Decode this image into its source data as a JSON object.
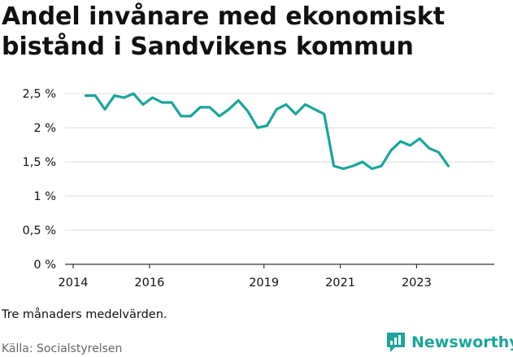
{
  "title_line1": "Andel invånare med ekonomiskt",
  "title_line2": "bistånd i Sandvikens kommun",
  "note": "Tre månaders medelvärden.",
  "source": "Källa: Socialstyrelsen",
  "brand": "Newsworthy",
  "colors": {
    "line": "#1aa59a",
    "grid": "#dddddd",
    "axis": "#333333",
    "brand": "#1aa59a"
  },
  "chart_data": {
    "type": "line",
    "title": "Andel invånare med ekonomiskt bistånd i Sandvikens kommun",
    "y_ticks": [
      {
        "value": 0,
        "label": "0 %"
      },
      {
        "value": 0.5,
        "label": "0,5 %"
      },
      {
        "value": 1,
        "label": "1 %"
      },
      {
        "value": 1.5,
        "label": "1,5 %"
      },
      {
        "value": 2,
        "label": "2 %"
      },
      {
        "value": 2.5,
        "label": "2,5 %"
      }
    ],
    "x_ticks": [
      {
        "value": 2014.0,
        "label": "2014"
      },
      {
        "value": 2016.0,
        "label": "2016"
      },
      {
        "value": 2019.0,
        "label": "2019"
      },
      {
        "value": 2021.0,
        "label": "2021"
      },
      {
        "value": 2023.0,
        "label": "2023"
      }
    ],
    "xlim": [
      2014.0,
      2025.25
    ],
    "ylim": [
      0,
      2.68
    ],
    "grid": true,
    "x": [
      2014.33,
      2014.58,
      2014.83,
      2015.08,
      2015.33,
      2015.58,
      2015.83,
      2016.08,
      2016.33,
      2016.58,
      2016.83,
      2017.08,
      2017.33,
      2017.58,
      2017.83,
      2018.08,
      2018.33,
      2018.58,
      2018.83,
      2019.08,
      2019.33,
      2019.58,
      2019.83,
      2020.08,
      2020.33,
      2020.58,
      2020.83,
      2021.08,
      2021.33,
      2021.58,
      2021.83,
      2022.08,
      2022.33,
      2022.58,
      2022.83,
      2023.08,
      2023.33,
      2023.58,
      2023.83
    ],
    "values": [
      2.47,
      2.47,
      2.27,
      2.47,
      2.44,
      2.5,
      2.34,
      2.44,
      2.37,
      2.37,
      2.17,
      2.17,
      2.3,
      2.3,
      2.17,
      2.27,
      2.4,
      2.24,
      2.0,
      2.03,
      2.27,
      2.34,
      2.2,
      2.34,
      2.27,
      2.2,
      1.44,
      1.4,
      1.44,
      1.5,
      1.4,
      1.44,
      1.67,
      1.8,
      1.74,
      1.84,
      1.7,
      1.64,
      1.44
    ]
  }
}
